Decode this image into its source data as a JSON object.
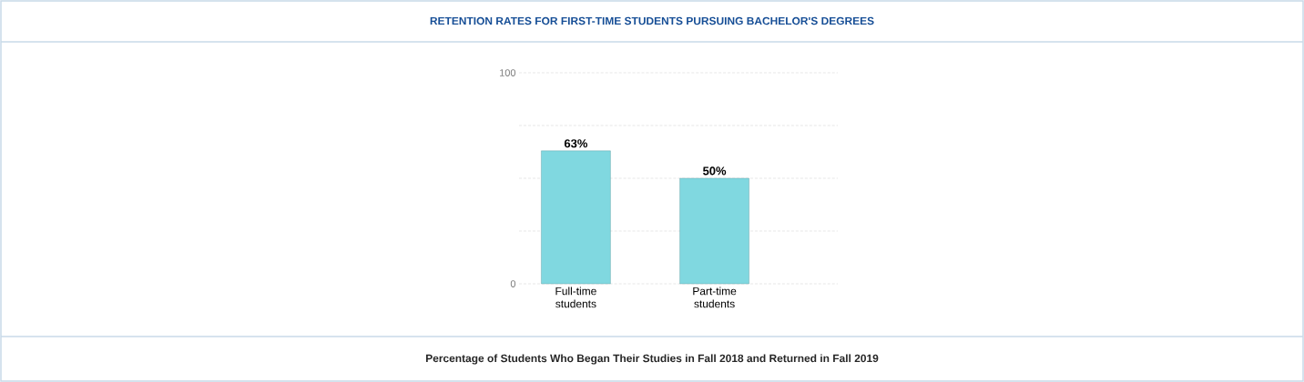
{
  "chart_data": {
    "type": "bar",
    "title": "RETENTION RATES FOR FIRST-TIME STUDENTS PURSUING BACHELOR'S DEGREES",
    "categories": [
      "Full-time students",
      "Part-time students"
    ],
    "values": [
      63,
      50
    ],
    "value_labels": [
      "63%",
      "50%"
    ],
    "color": "#80d8e0",
    "ylim": [
      0,
      100
    ],
    "yticks": [
      0,
      {
        "value": 25,
        "label": null
      },
      {
        "value": 50,
        "label": null
      },
      {
        "value": 75,
        "label": null
      },
      100
    ],
    "grid": "y",
    "annotations": [
      "Percentage of Students Who Began Their Studies in Fall 2018 and Returned in Fall 2019"
    ]
  }
}
